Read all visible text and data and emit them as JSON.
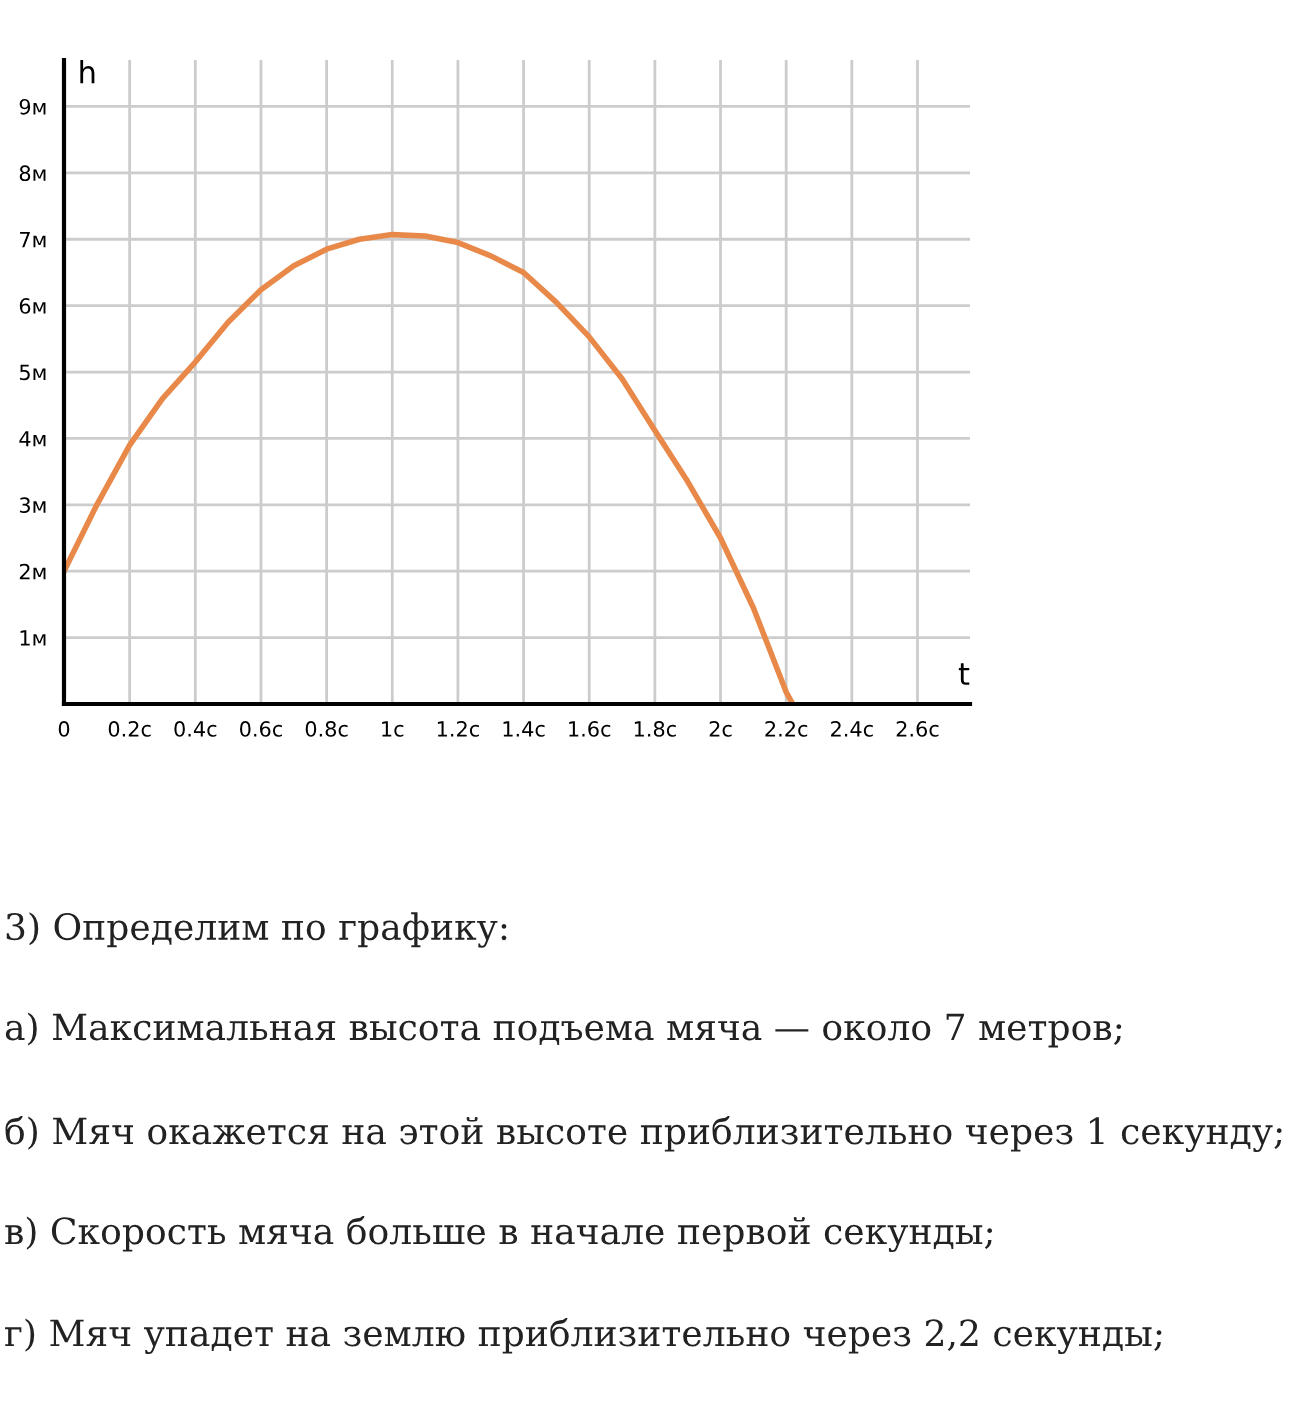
{
  "chart_data": {
    "type": "line",
    "xlabel": "t",
    "ylabel": "h",
    "x": [
      0,
      0.1,
      0.2,
      0.3,
      0.4,
      0.5,
      0.6,
      0.7,
      0.8,
      0.9,
      1.0,
      1.1,
      1.2,
      1.3,
      1.4,
      1.5,
      1.6,
      1.7,
      1.8,
      1.9,
      2.0,
      2.1,
      2.2,
      2.22
    ],
    "series": [
      {
        "color": "#e8894a",
        "values": [
          2,
          3.0,
          3.9,
          4.6,
          5.15,
          5.75,
          6.24,
          6.6,
          6.85,
          7.0,
          7.07,
          7.05,
          6.95,
          6.75,
          6.5,
          6.05,
          5.53,
          4.9,
          4.12,
          3.35,
          2.5,
          1.45,
          0.18,
          0
        ]
      }
    ],
    "xlim": [
      0,
      2.76
    ],
    "ylim": [
      0,
      9.7
    ],
    "xticks": [
      0,
      {
        "value": 0.2,
        "label": "0.2с"
      },
      {
        "value": 0.4,
        "label": "0.4с"
      },
      {
        "value": 0.6,
        "label": "0.6с"
      },
      {
        "value": 0.8,
        "label": "0.8с"
      },
      {
        "value": 1,
        "label": "1с"
      },
      {
        "value": 1.2,
        "label": "1.2с"
      },
      {
        "value": 1.4,
        "label": "1.4с"
      },
      {
        "value": 1.6,
        "label": "1.6с"
      },
      {
        "value": 1.8,
        "label": "1.8с"
      },
      {
        "value": 2,
        "label": "2с"
      },
      {
        "value": 2.2,
        "label": "2.2с"
      },
      {
        "value": 2.4,
        "label": "2.4с"
      },
      {
        "value": 2.6,
        "label": "2.6с"
      }
    ],
    "yticks": [
      {
        "value": 1,
        "label": "1м"
      },
      {
        "value": 2,
        "label": "2м"
      },
      {
        "value": 3,
        "label": "3м"
      },
      {
        "value": 4,
        "label": "4м"
      },
      {
        "value": 5,
        "label": "5м"
      },
      {
        "value": 6,
        "label": "6м"
      },
      {
        "value": 7,
        "label": "7м"
      },
      {
        "value": 8,
        "label": "8м"
      },
      {
        "value": 9,
        "label": "9м"
      }
    ],
    "grid": true,
    "marker": "none",
    "line_style": "solid",
    "annotations": [
      "3) Определим по графику:",
      "а) Максимальная высота подъема мяча — около 7 метров;",
      "б) Мяч окажется на этой высоте приблизительно через 1 секунду;",
      "в) Скорость мяча больше в начале первой секунды;",
      "г) Мяч упадет на землю приблизительно через 2,2 секунды;"
    ]
  }
}
